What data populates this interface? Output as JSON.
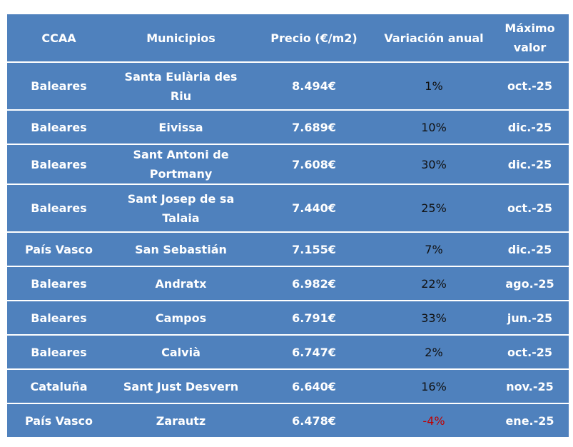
{
  "table": {
    "header": [
      "CCAA",
      "Municipios",
      "Precio (€/m2)",
      "Variación anual",
      "Máximo valor"
    ],
    "rows": [
      [
        "Baleares",
        "Santa Eulària des Riu",
        "8.494€",
        "1%",
        "oct.-25"
      ],
      [
        "Baleares",
        "Eivissa",
        "7.689€",
        "10%",
        "dic.-25"
      ],
      [
        "Baleares",
        "Sant Antoni de Portmany",
        "7.608€",
        "30%",
        "dic.-25"
      ],
      [
        "Baleares",
        "Sant Josep de sa Talaia",
        "7.440€",
        "25%",
        "oct.-25"
      ],
      [
        "País Vasco",
        "San Sebastián",
        "7.155€",
        "7%",
        "dic.-25"
      ],
      [
        "Baleares",
        "Andratx",
        "6.982€",
        "22%",
        "ago.-25"
      ],
      [
        "Baleares",
        "Campos",
        "6.791€",
        "33%",
        "jun.-25"
      ],
      [
        "Baleares",
        "Calvià",
        "6.747€",
        "2%",
        "oct.-25"
      ],
      [
        "Cataluña",
        "Sant Just Desvern",
        "6.640€",
        "16%",
        "nov.-25"
      ],
      [
        "País Vasco",
        "Zarautz",
        "6.478€",
        "-4%",
        "ene.-25"
      ]
    ]
  }
}
